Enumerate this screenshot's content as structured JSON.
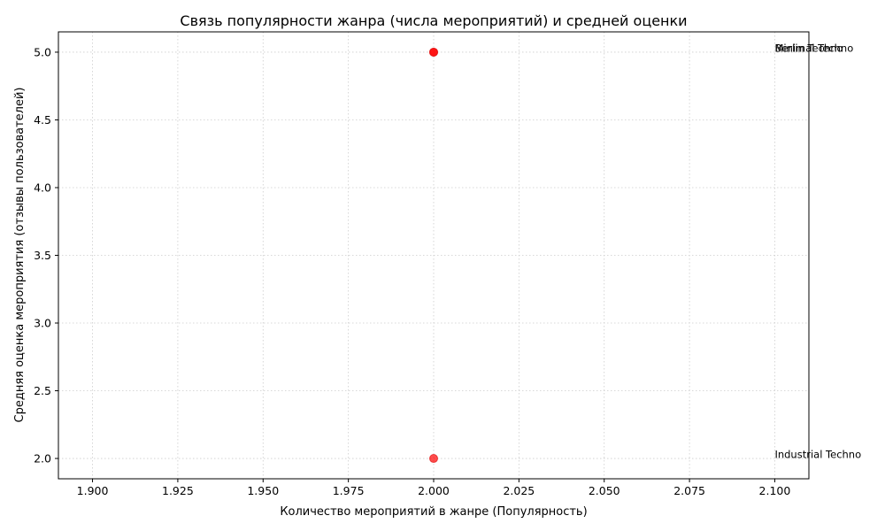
{
  "chart_data": {
    "type": "scatter",
    "title": "Связь популярности жанра (числа мероприятий) и средней оценки",
    "xlabel": "Количество мероприятий в жанре (Популярность)",
    "ylabel": "Средняя оценка мероприятия (отзывы пользователей)",
    "xlim": [
      1.89,
      2.11
    ],
    "ylim": [
      1.85,
      5.15
    ],
    "xticks": [
      1.9,
      1.925,
      1.95,
      1.975,
      2.0,
      2.025,
      2.05,
      2.075,
      2.1
    ],
    "xtick_labels": [
      "1.900",
      "1.925",
      "1.950",
      "1.975",
      "2.000",
      "2.025",
      "2.050",
      "2.075",
      "2.100"
    ],
    "yticks": [
      2.0,
      2.5,
      3.0,
      3.5,
      4.0,
      4.5,
      5.0
    ],
    "ytick_labels": [
      "2.0",
      "2.5",
      "3.0",
      "3.5",
      "4.0",
      "4.5",
      "5.0"
    ],
    "grid": true,
    "point_color": "#ff0000",
    "points": [
      {
        "label": "Minimal Techno",
        "x": 2.0,
        "y": 5.0
      },
      {
        "label": "Berlin Techno",
        "x": 2.0,
        "y": 5.0
      },
      {
        "label": "Industrial Techno",
        "x": 2.0,
        "y": 2.0
      }
    ],
    "annotations": [
      {
        "text": "Minimal Techno",
        "x": 2.1,
        "y": 5.0
      },
      {
        "text": "Berlin Techno",
        "x": 2.1,
        "y": 5.0
      },
      {
        "text": "Industrial Techno",
        "x": 2.1,
        "y": 2.0
      }
    ]
  }
}
